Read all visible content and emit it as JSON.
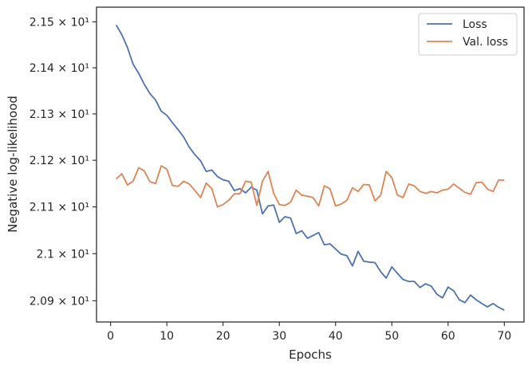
{
  "chart_data": {
    "type": "line",
    "xlabel": "Epochs",
    "ylabel": "Negative log-likelihood",
    "xlim": [
      -2.5,
      73.5
    ],
    "ylim": [
      20.855,
      21.532
    ],
    "yscale": "log",
    "grid": false,
    "legend_position": "top-right",
    "x_ticks": [
      0,
      10,
      20,
      30,
      40,
      50,
      60,
      70
    ],
    "x_tick_labels": [
      "0",
      "10",
      "20",
      "30",
      "40",
      "50",
      "60",
      "70"
    ],
    "y_ticks": [
      20.9,
      21.0,
      21.1,
      21.2,
      21.3,
      21.4,
      21.5
    ],
    "y_tick_labels": [
      "2.09 × 10¹",
      "2.1 × 10¹",
      "2.11 × 10¹",
      "2.12 × 10¹",
      "2.13 × 10¹",
      "2.14 × 10¹",
      "2.15 × 10¹"
    ],
    "x": [
      1,
      2,
      3,
      4,
      5,
      6,
      7,
      8,
      9,
      10,
      11,
      12,
      13,
      14,
      15,
      16,
      17,
      18,
      19,
      20,
      21,
      22,
      23,
      24,
      25,
      26,
      27,
      28,
      29,
      30,
      31,
      32,
      33,
      34,
      35,
      36,
      37,
      38,
      39,
      40,
      41,
      42,
      43,
      44,
      45,
      46,
      47,
      48,
      49,
      50,
      51,
      52,
      53,
      54,
      55,
      56,
      57,
      58,
      59,
      60,
      61,
      62,
      63,
      64,
      65,
      66,
      67,
      68,
      69,
      70
    ],
    "series": [
      {
        "name": "Loss",
        "color": "#4c72b0",
        "values": [
          21.493,
          21.472,
          21.444,
          21.408,
          21.388,
          21.364,
          21.344,
          21.33,
          21.306,
          21.297,
          21.281,
          21.266,
          21.25,
          21.228,
          21.212,
          21.199,
          21.176,
          21.179,
          21.165,
          21.158,
          21.155,
          21.135,
          21.139,
          21.13,
          21.142,
          21.136,
          21.085,
          21.102,
          21.104,
          21.067,
          21.079,
          21.076,
          21.043,
          21.049,
          21.033,
          21.039,
          21.045,
          21.019,
          21.021,
          21.01,
          20.999,
          20.996,
          20.974,
          21.005,
          20.984,
          20.982,
          20.981,
          20.962,
          20.948,
          20.972,
          20.958,
          20.945,
          20.941,
          20.941,
          20.928,
          20.936,
          20.931,
          20.914,
          20.906,
          20.929,
          20.921,
          20.902,
          20.896,
          20.912,
          20.902,
          20.894,
          20.887,
          20.894,
          20.886,
          20.88
        ]
      },
      {
        "name": "Val. loss",
        "color": "#dd8452",
        "values": [
          21.16,
          21.171,
          21.147,
          21.155,
          21.184,
          21.177,
          21.154,
          21.15,
          21.188,
          21.181,
          21.146,
          21.144,
          21.155,
          21.149,
          21.135,
          21.12,
          21.151,
          21.139,
          21.1,
          21.105,
          21.114,
          21.128,
          21.128,
          21.155,
          21.153,
          21.103,
          21.155,
          21.176,
          21.129,
          21.105,
          21.103,
          21.11,
          21.136,
          21.125,
          21.123,
          21.12,
          21.102,
          21.145,
          21.139,
          21.102,
          21.106,
          21.114,
          21.141,
          21.133,
          21.148,
          21.147,
          21.113,
          21.125,
          21.176,
          21.163,
          21.125,
          21.12,
          21.149,
          21.145,
          21.133,
          21.129,
          21.133,
          21.13,
          21.136,
          21.138,
          21.149,
          21.14,
          21.131,
          21.127,
          21.152,
          21.153,
          21.138,
          21.133,
          21.158,
          21.157
        ]
      }
    ]
  }
}
